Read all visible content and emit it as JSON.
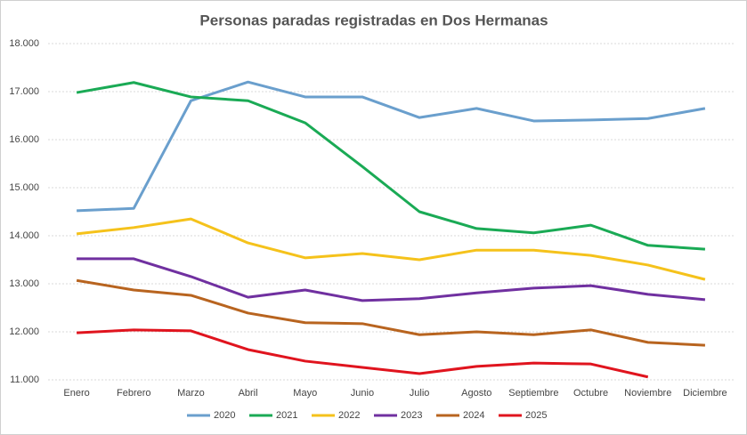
{
  "chart_data": {
    "type": "line",
    "title": "Personas paradas registradas en Dos Hermanas",
    "categories": [
      "Enero",
      "Febrero",
      "Marzo",
      "Abril",
      "Mayo",
      "Junio",
      "Julio",
      "Agosto",
      "Septiembre",
      "Octubre",
      "Noviembre",
      "Diciembre"
    ],
    "series": [
      {
        "name": "2020",
        "color": "#6a9fcd",
        "values": [
          14520,
          14570,
          16810,
          17200,
          16890,
          16890,
          16460,
          16650,
          16390,
          16410,
          16440,
          16650
        ]
      },
      {
        "name": "2021",
        "color": "#1aaa55",
        "values": [
          16980,
          17190,
          16890,
          16810,
          16350,
          15440,
          14500,
          14150,
          14060,
          14220,
          13800,
          13720
        ]
      },
      {
        "name": "2022",
        "color": "#f5c21b",
        "values": [
          14040,
          14170,
          14350,
          13850,
          13540,
          13630,
          13500,
          13700,
          13700,
          13590,
          13390,
          13090
        ]
      },
      {
        "name": "2023",
        "color": "#7030a0",
        "values": [
          13520,
          13520,
          13150,
          12720,
          12870,
          12650,
          12690,
          12810,
          12910,
          12960,
          12780,
          12670
        ]
      },
      {
        "name": "2024",
        "color": "#b8641f",
        "values": [
          13070,
          12870,
          12760,
          12390,
          12190,
          12170,
          11940,
          12000,
          11940,
          12040,
          11780,
          11720
        ]
      },
      {
        "name": "2025",
        "color": "#e0141e",
        "values": [
          11980,
          12040,
          12020,
          11630,
          11390,
          11260,
          11130,
          11280,
          11350,
          11330,
          11060,
          null
        ]
      }
    ],
    "ylim": [
      11000,
      18000
    ],
    "yticks": [
      {
        "value": 11000,
        "label": "11.000"
      },
      {
        "value": 12000,
        "label": "12.000"
      },
      {
        "value": 13000,
        "label": "13.000"
      },
      {
        "value": 14000,
        "label": "14.000"
      },
      {
        "value": 15000,
        "label": "15.000"
      },
      {
        "value": 16000,
        "label": "16.000"
      },
      {
        "value": 17000,
        "label": "17.000"
      },
      {
        "value": 18000,
        "label": "18.000"
      }
    ],
    "grid": true,
    "legend": "bottom"
  }
}
